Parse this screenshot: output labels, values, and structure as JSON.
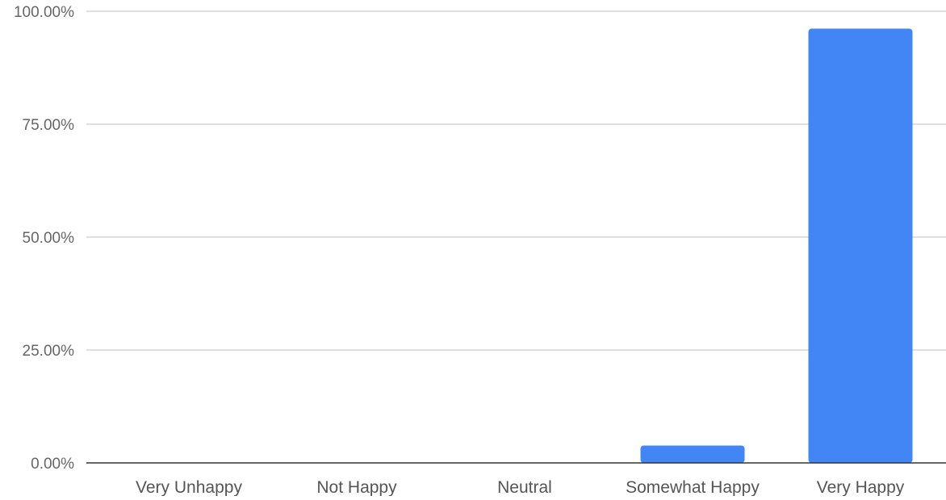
{
  "chart_data": {
    "type": "bar",
    "title": "",
    "xlabel": "",
    "ylabel": "",
    "categories": [
      "Very Unhappy",
      "Not Happy",
      "Neutral",
      "Somewhat Happy",
      "Very Happy"
    ],
    "values": [
      0,
      0,
      0,
      3.85,
      96.15
    ],
    "ylim": [
      0,
      100
    ],
    "yticks": [
      0,
      25,
      50,
      75,
      100
    ],
    "ytick_labels": [
      "0.00%",
      "25.00%",
      "50.00%",
      "75.00%",
      "100.00%"
    ],
    "grid": true,
    "legend": "none",
    "colors": {
      "bar": "#4285f4",
      "grid": "#cccccc",
      "baseline": "#333333"
    }
  }
}
